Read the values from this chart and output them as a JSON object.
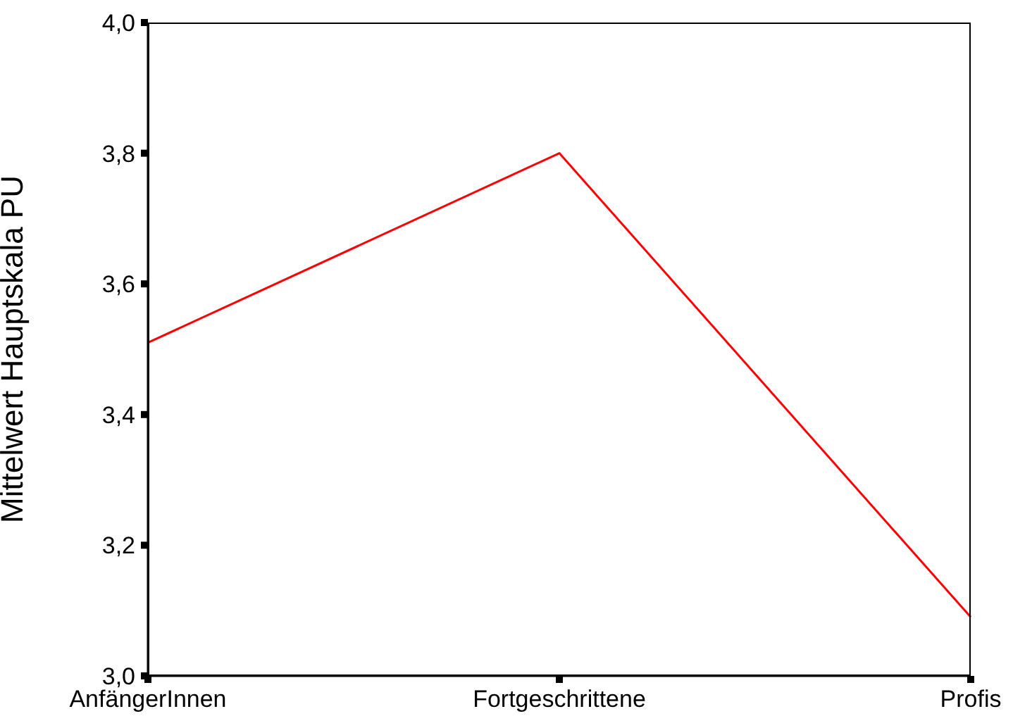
{
  "chart_data": {
    "type": "line",
    "ylabel": "Mittelwert Hauptskala PU",
    "categories": [
      "AnfängerInnen",
      "Fortgeschrittene",
      "Profis"
    ],
    "series": [
      {
        "color": "#ff0000",
        "values": [
          3.51,
          3.8,
          3.09
        ]
      }
    ],
    "ylim": [
      3.0,
      4.0
    ],
    "yticks": [
      {
        "value": 3.0,
        "label": "3,0"
      },
      {
        "value": 3.2,
        "label": "3,2"
      },
      {
        "value": 3.4,
        "label": "3,4"
      },
      {
        "value": 3.6,
        "label": "3,6"
      },
      {
        "value": 3.8,
        "label": "3,8"
      },
      {
        "value": 4.0,
        "label": "4,0"
      }
    ],
    "grid": false,
    "legend": false,
    "marker": "none"
  }
}
